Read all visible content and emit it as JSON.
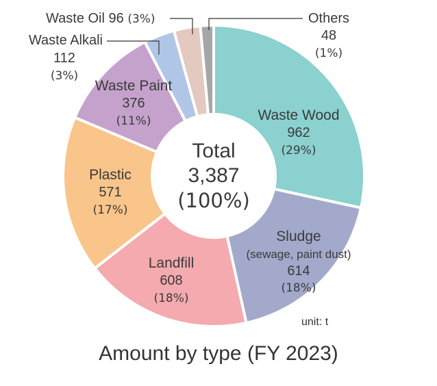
{
  "chart_data": {
    "type": "pie",
    "unit_label": "unit: t",
    "caption": "Amount by type (FY 2023)",
    "center": {
      "title": "Total",
      "value": "3,387",
      "percent": "(100%)"
    },
    "slices": [
      {
        "name": "Waste Wood",
        "subname": "",
        "value": 962,
        "value_label": "962",
        "percent_label": "(29%)",
        "color": "#8ad1cf"
      },
      {
        "name": "Sludge",
        "subname": "(sewage, paint dust)",
        "value": 614,
        "value_label": "614",
        "percent_label": "(18%)",
        "color": "#a3a9ca"
      },
      {
        "name": "Landfill",
        "subname": "",
        "value": 608,
        "value_label": "608",
        "percent_label": "(18%)",
        "color": "#f4aaae"
      },
      {
        "name": "Plastic",
        "subname": "",
        "value": 571,
        "value_label": "571",
        "percent_label": "(17%)",
        "color": "#f9c58a"
      },
      {
        "name": "Waste Paint",
        "subname": "",
        "value": 376,
        "value_label": "376",
        "percent_label": "(11%)",
        "color": "#c5a2cc"
      },
      {
        "name": "Waste Alkali",
        "subname": "",
        "value": 112,
        "value_label": "112",
        "percent_label": "(3%)",
        "color": "#b0c6e6"
      },
      {
        "name": "Waste Oil",
        "subname": "",
        "value": 96,
        "value_label": "96",
        "percent_label": "(3%)",
        "color": "#e3c9c0"
      },
      {
        "name": "Others",
        "subname": "",
        "value": 48,
        "value_label": "48",
        "percent_label": "(1%)",
        "color": "#a6a6a6"
      }
    ]
  }
}
